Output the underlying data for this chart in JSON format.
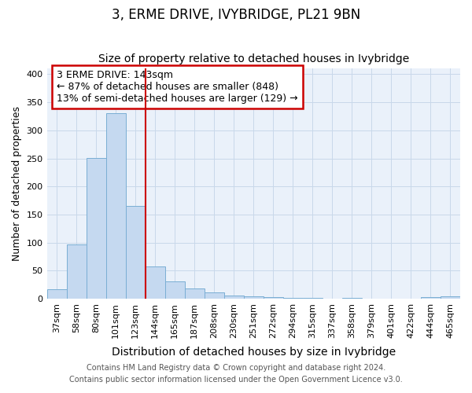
{
  "title": "3, ERME DRIVE, IVYBRIDGE, PL21 9BN",
  "subtitle": "Size of property relative to detached houses in Ivybridge",
  "xlabel": "Distribution of detached houses by size in Ivybridge",
  "ylabel": "Number of detached properties",
  "bar_labels": [
    "37sqm",
    "58sqm",
    "80sqm",
    "101sqm",
    "123sqm",
    "144sqm",
    "165sqm",
    "187sqm",
    "208sqm",
    "230sqm",
    "251sqm",
    "272sqm",
    "294sqm",
    "315sqm",
    "337sqm",
    "358sqm",
    "379sqm",
    "401sqm",
    "422sqm",
    "444sqm",
    "465sqm"
  ],
  "bar_values": [
    16,
    96,
    251,
    330,
    165,
    58,
    30,
    18,
    11,
    6,
    4,
    2,
    1,
    1,
    0,
    1,
    0,
    0,
    0,
    3,
    4
  ],
  "bar_color": "#c5d9f0",
  "bar_edge_color": "#7aaed4",
  "marker_color": "#cc0000",
  "grid_color": "#c8d8ea",
  "bg_color": "#eaf1fa",
  "ylim": [
    0,
    410
  ],
  "yticks": [
    0,
    50,
    100,
    150,
    200,
    250,
    300,
    350,
    400
  ],
  "annotation_line1": "3 ERME DRIVE: 143sqm",
  "annotation_line2": "← 87% of detached houses are smaller (848)",
  "annotation_line3": "13% of semi-detached houses are larger (129) →",
  "footer_line1": "Contains HM Land Registry data © Crown copyright and database right 2024.",
  "footer_line2": "Contains public sector information licensed under the Open Government Licence v3.0.",
  "red_line_x": 5,
  "title_fontsize": 12,
  "subtitle_fontsize": 10,
  "xlabel_fontsize": 10,
  "ylabel_fontsize": 9,
  "tick_fontsize": 8,
  "annotation_fontsize": 9,
  "footer_fontsize": 7
}
